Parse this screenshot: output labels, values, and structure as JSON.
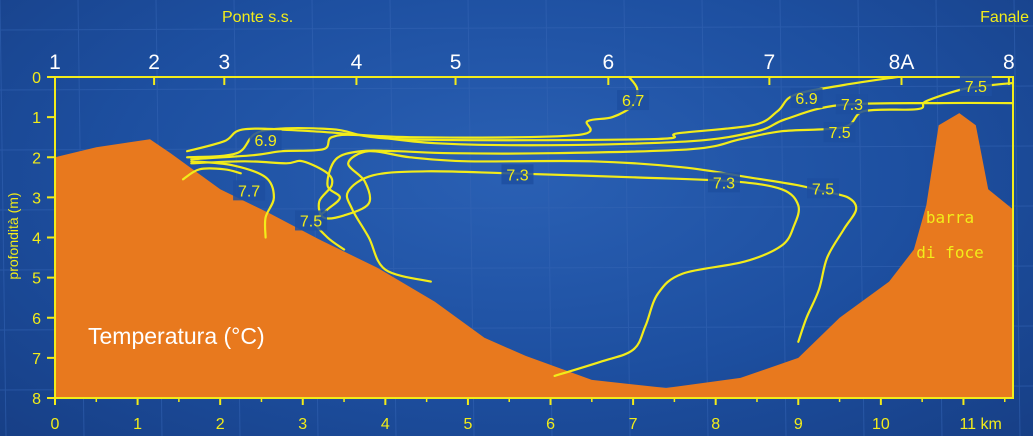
{
  "chart_data": {
    "type": "contour",
    "title": "Temperatura (°C)",
    "top_labels": {
      "left": "Ponte s.s.",
      "right": "Fanale"
    },
    "stations": [
      {
        "name": "1",
        "km": 0
      },
      {
        "name": "2",
        "km": 1.2
      },
      {
        "name": "3",
        "km": 2.05
      },
      {
        "name": "4",
        "km": 3.65
      },
      {
        "name": "5",
        "km": 4.85
      },
      {
        "name": "6",
        "km": 6.7
      },
      {
        "name": "7",
        "km": 8.65
      },
      {
        "name": "8A",
        "km": 10.25
      },
      {
        "name": "8",
        "km": 11.55
      }
    ],
    "xlabel": "km",
    "ylabel": "profondità (m)",
    "xlim": [
      0,
      11.6
    ],
    "ylim": [
      8,
      0
    ],
    "x_ticks": [
      {
        "value": 0,
        "label": "0"
      },
      {
        "value": 1,
        "label": "1"
      },
      {
        "value": 2,
        "label": "2"
      },
      {
        "value": 3,
        "label": "3"
      },
      {
        "value": 4,
        "label": "4"
      },
      {
        "value": 5,
        "label": "5"
      },
      {
        "value": 6,
        "label": "6"
      },
      {
        "value": 7,
        "label": "7"
      },
      {
        "value": 8,
        "label": "8"
      },
      {
        "value": 9,
        "label": "9"
      },
      {
        "value": 10,
        "label": "10"
      },
      {
        "value": 11,
        "label": "11 km"
      }
    ],
    "y_ticks": [
      0,
      1,
      2,
      3,
      4,
      5,
      6,
      7,
      8
    ],
    "bottom_profile": [
      [
        0,
        2.0
      ],
      [
        0.5,
        1.75
      ],
      [
        1.15,
        1.55
      ],
      [
        1.4,
        1.9
      ],
      [
        2.0,
        2.8
      ],
      [
        2.6,
        3.4
      ],
      [
        3.2,
        4.05
      ],
      [
        3.9,
        4.75
      ],
      [
        4.6,
        5.6
      ],
      [
        5.2,
        6.5
      ],
      [
        5.7,
        6.95
      ],
      [
        6.5,
        7.55
      ],
      [
        7.4,
        7.75
      ],
      [
        8.3,
        7.5
      ],
      [
        9.0,
        7.0
      ],
      [
        9.5,
        6.0
      ],
      [
        10.1,
        5.1
      ],
      [
        10.4,
        4.3
      ],
      [
        10.55,
        3.2
      ],
      [
        10.7,
        1.2
      ],
      [
        10.95,
        0.9
      ],
      [
        11.15,
        1.2
      ],
      [
        11.3,
        2.8
      ],
      [
        11.6,
        3.3
      ],
      [
        11.6,
        8.0
      ],
      [
        0,
        8.0
      ]
    ],
    "isotherm_labels": [
      {
        "text": "6.7",
        "km": 7.0,
        "depth": 0.6
      },
      {
        "text": "6.9",
        "km": 9.1,
        "depth": 0.55
      },
      {
        "text": "6.9",
        "km": 2.55,
        "depth": 1.6
      },
      {
        "text": "7.3",
        "km": 9.65,
        "depth": 0.7
      },
      {
        "text": "7.3",
        "km": 5.6,
        "depth": 2.45
      },
      {
        "text": "7.3",
        "km": 8.1,
        "depth": 2.65
      },
      {
        "text": "7.5",
        "km": 11.15,
        "depth": 0.25
      },
      {
        "text": "7.5",
        "km": 9.5,
        "depth": 1.4
      },
      {
        "text": "7.5",
        "km": 9.3,
        "depth": 2.8
      },
      {
        "text": "7.5",
        "km": 3.1,
        "depth": 3.6
      },
      {
        "text": "7.7",
        "km": 2.35,
        "depth": 2.85
      }
    ],
    "isotherms": [
      {
        "value": "6.7",
        "points": [
          [
            6.95,
            0
          ],
          [
            7.05,
            0.3
          ],
          [
            7.0,
            0.7
          ],
          [
            6.75,
            1.0
          ],
          [
            6.45,
            1.1
          ],
          [
            6.3,
            1.45
          ],
          [
            4.3,
            1.5
          ],
          [
            3.1,
            1.35
          ],
          [
            2.3,
            1.3
          ],
          [
            2.05,
            1.6
          ],
          [
            1.6,
            1.85
          ]
        ]
      },
      {
        "value": "6.9",
        "points": [
          [
            10.2,
            0
          ],
          [
            9.55,
            0.2
          ],
          [
            8.95,
            0.45
          ],
          [
            8.75,
            0.85
          ],
          [
            8.45,
            1.2
          ],
          [
            7.55,
            1.4
          ],
          [
            7.2,
            1.55
          ],
          [
            4.2,
            1.55
          ],
          [
            3.35,
            1.3
          ],
          [
            2.5,
            1.35
          ],
          [
            2.2,
            1.9
          ],
          [
            1.6,
            2.0
          ]
        ]
      },
      {
        "value": "7.3",
        "points": [
          [
            11.6,
            0.65
          ],
          [
            10.7,
            0.65
          ],
          [
            9.5,
            0.7
          ],
          [
            8.85,
            1.05
          ],
          [
            8.5,
            1.35
          ],
          [
            7.7,
            1.6
          ],
          [
            6.0,
            1.7
          ],
          [
            4.6,
            1.65
          ],
          [
            3.7,
            1.45
          ],
          [
            3.35,
            1.5
          ],
          [
            3.25,
            1.8
          ],
          [
            2.75,
            1.85
          ],
          [
            2.4,
            1.95
          ],
          [
            1.65,
            2.05
          ]
        ]
      },
      {
        "value": "7.5",
        "points": [
          [
            11.6,
            0.15
          ],
          [
            11.35,
            0.2
          ],
          [
            11.0,
            0.3
          ],
          [
            10.55,
            0.6
          ],
          [
            10.45,
            0.8
          ],
          [
            9.8,
            0.85
          ],
          [
            9.55,
            1.25
          ],
          [
            8.8,
            1.35
          ],
          [
            8.3,
            1.55
          ],
          [
            7.7,
            1.8
          ],
          [
            6.0,
            1.9
          ],
          [
            4.8,
            1.9
          ],
          [
            4.15,
            1.85
          ],
          [
            3.7,
            1.85
          ],
          [
            3.4,
            2.05
          ],
          [
            3.3,
            2.7
          ],
          [
            3.45,
            3.0
          ],
          [
            3.3,
            3.3
          ],
          [
            3.15,
            3.6
          ],
          [
            3.3,
            4.0
          ],
          [
            3.5,
            4.3
          ]
        ]
      },
      {
        "value": "7.5b",
        "points": [
          [
            1.65,
            2.15
          ],
          [
            2.3,
            2.1
          ],
          [
            2.8,
            2.15
          ],
          [
            3.0,
            2.1
          ],
          [
            3.3,
            2.4
          ],
          [
            3.35,
            2.7
          ],
          [
            3.2,
            3.1
          ],
          [
            3.25,
            3.5
          ],
          [
            3.5,
            3.45
          ],
          [
            3.8,
            3.15
          ],
          [
            3.75,
            2.6
          ],
          [
            3.55,
            2.15
          ],
          [
            3.8,
            1.85
          ],
          [
            4.3,
            2.0
          ],
          [
            5.0,
            2.1
          ],
          [
            6.5,
            2.1
          ],
          [
            7.6,
            2.25
          ],
          [
            8.4,
            2.5
          ],
          [
            9.0,
            2.7
          ],
          [
            9.3,
            2.85
          ],
          [
            9.6,
            3.0
          ],
          [
            9.7,
            3.3
          ],
          [
            9.55,
            3.8
          ],
          [
            9.35,
            4.5
          ],
          [
            9.25,
            5.3
          ],
          [
            9.1,
            6.0
          ],
          [
            9.0,
            6.6
          ]
        ]
      },
      {
        "value": "7.3",
        "points": [
          [
            4.55,
            5.1
          ],
          [
            4.0,
            4.8
          ],
          [
            3.8,
            4.0
          ],
          [
            3.6,
            3.3
          ],
          [
            3.55,
            2.85
          ],
          [
            3.85,
            2.45
          ],
          [
            4.5,
            2.35
          ],
          [
            5.5,
            2.4
          ],
          [
            7.0,
            2.5
          ],
          [
            8.2,
            2.6
          ],
          [
            8.8,
            2.8
          ],
          [
            9.0,
            3.2
          ],
          [
            8.95,
            3.7
          ],
          [
            8.8,
            4.2
          ],
          [
            8.35,
            4.6
          ],
          [
            7.6,
            4.9
          ],
          [
            7.3,
            5.4
          ],
          [
            7.15,
            6.2
          ],
          [
            7.0,
            6.8
          ],
          [
            6.6,
            7.1
          ],
          [
            6.05,
            7.45
          ]
        ]
      },
      {
        "value": "7.7",
        "points": [
          [
            1.65,
            2.1
          ],
          [
            2.15,
            2.2
          ],
          [
            2.55,
            2.5
          ],
          [
            2.65,
            3.0
          ],
          [
            2.55,
            3.5
          ],
          [
            2.55,
            4.0
          ]
        ]
      },
      {
        "value": "7.7b",
        "points": [
          [
            1.55,
            2.55
          ],
          [
            1.75,
            2.3
          ],
          [
            2.05,
            2.3
          ],
          [
            2.25,
            2.4
          ]
        ]
      }
    ]
  }
}
